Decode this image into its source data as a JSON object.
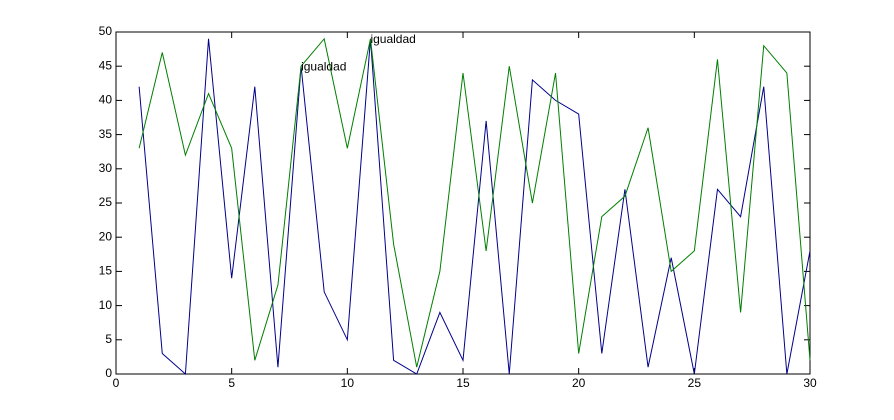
{
  "chart_data": {
    "type": "line",
    "x": [
      1,
      2,
      3,
      4,
      5,
      6,
      7,
      8,
      9,
      10,
      11,
      12,
      13,
      14,
      15,
      16,
      17,
      18,
      19,
      20,
      21,
      22,
      23,
      24,
      25,
      26,
      27,
      28,
      29,
      30
    ],
    "series": [
      {
        "color": "#00008b",
        "values": [
          42,
          3,
          0,
          49,
          14,
          42,
          1,
          45,
          12,
          5,
          49,
          2,
          0,
          9,
          2,
          37,
          0,
          43,
          40,
          38,
          3,
          27,
          1,
          17,
          0,
          27,
          23,
          42,
          0,
          18
        ]
      },
      {
        "color": "#007f00",
        "values": [
          33,
          47,
          32,
          41,
          33,
          2,
          13,
          45,
          49,
          33,
          49,
          19,
          1,
          15,
          44,
          18,
          45,
          25,
          44,
          3,
          23,
          26,
          36,
          15,
          18,
          46,
          9,
          48,
          44,
          2
        ]
      }
    ],
    "annotations": [
      {
        "x": 8,
        "y": 45,
        "text": "igualdad"
      },
      {
        "x": 11,
        "y": 49,
        "text": "igualdad"
      }
    ],
    "xlim": [
      0,
      30
    ],
    "xticks": [
      0,
      5,
      10,
      15,
      20,
      25,
      30
    ],
    "ylim": [
      0,
      50
    ],
    "yticks": [
      0,
      5,
      10,
      15,
      20,
      25,
      30,
      35,
      40,
      45,
      50
    ],
    "grid": false
  }
}
